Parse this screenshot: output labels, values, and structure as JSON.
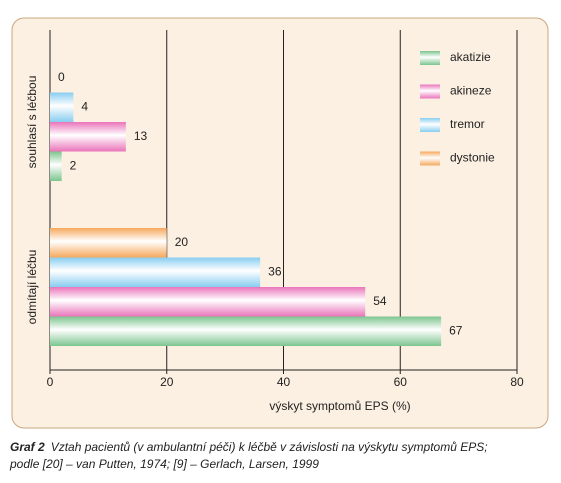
{
  "chart_data": {
    "type": "hbar",
    "categories": [
      "souhlasí s léčbou",
      "odmítají léčbu"
    ],
    "series": [
      {
        "name": "akatizie",
        "color": "#7cc48e",
        "values": [
          2,
          67
        ]
      },
      {
        "name": "akineze",
        "color": "#ea74ba",
        "values": [
          13,
          54
        ]
      },
      {
        "name": "tremor",
        "color": "#88cdf0",
        "values": [
          4,
          36
        ]
      },
      {
        "name": "dystonie",
        "color": "#f5a85c",
        "values": [
          0,
          20
        ]
      }
    ],
    "xlabel": "výskyt symptomů EPS (%)",
    "xlim": [
      0,
      80
    ],
    "xticks": [
      0,
      20,
      40,
      60,
      80
    ],
    "grid": true,
    "legend": "top-right",
    "caption": {
      "label": "Graf 2",
      "line1": "Vztah pacientů (v ambulantní péči) k léčbě v závislosti na výskytu symptomů EPS;",
      "line2": "podle [20] – van Putten, 1974; [9] – Gerlach, Larsen, 1999"
    }
  }
}
